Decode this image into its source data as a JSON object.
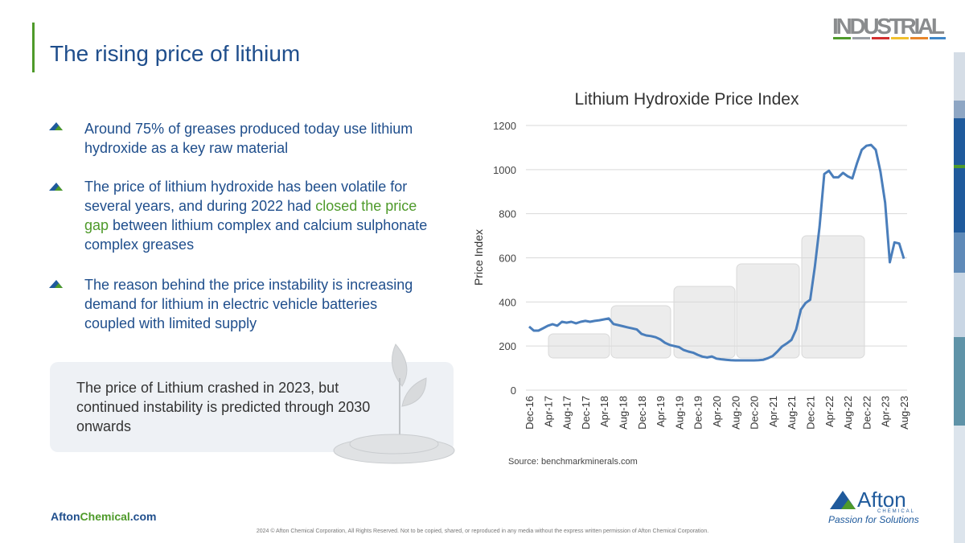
{
  "slide": {
    "title": "The rising price of lithium",
    "brand": "INDUSTRIAL",
    "bullets": [
      {
        "parts": [
          "Around 75% of greases produced today use lithium hydroxide as a key raw material"
        ]
      },
      {
        "parts": [
          "The price of lithium hydroxide has been volatile for several years, and during 2022 had ",
          "closed the price gap",
          " between lithium complex and calcium sulphonate complex greases"
        ]
      },
      {
        "parts": [
          "The reason behind the price instability is increasing demand for lithium in electric vehicle batteries coupled with limited supply"
        ]
      }
    ],
    "callout": "The price of Lithium crashed in 2023, but continued instability is predicted through 2030 onwards",
    "source": "Source: benchmarkminerals.com",
    "footer": {
      "site": [
        "Afton",
        "Chemical",
        ".com"
      ],
      "copyright": "2024 © Afton Chemical Corporation, All Rights Reserved.  Not to be copied, shared, or reproduced in any media without the express written permission of Afton Chemical Corporation."
    },
    "logo": {
      "name": "Afton",
      "sub": "CHEMICAL",
      "tagline": "Passion for Solutions"
    }
  },
  "chart_data": {
    "type": "line",
    "title": "Lithium Hydroxide Price Index",
    "y_label": "Price Index",
    "color": "#4a7ebb",
    "grid": true,
    "ylim": [
      0,
      1200
    ],
    "yticks": [
      0,
      200,
      400,
      600,
      800,
      1000,
      1200
    ],
    "categories": [
      "Dec-16",
      null,
      null,
      null,
      "Apr-17",
      null,
      null,
      null,
      "Aug-17",
      null,
      null,
      null,
      "Dec-17",
      null,
      null,
      null,
      "Apr-18",
      null,
      null,
      null,
      "Aug-18",
      null,
      null,
      null,
      "Dec-18",
      null,
      null,
      null,
      "Apr-19",
      null,
      null,
      null,
      "Aug-19",
      null,
      null,
      null,
      "Dec-19",
      null,
      null,
      null,
      "Apr-20",
      null,
      null,
      null,
      "Aug-20",
      null,
      null,
      null,
      "Dec-20",
      null,
      null,
      null,
      "Apr-21",
      null,
      null,
      null,
      "Aug-21",
      null,
      null,
      null,
      "Dec-21",
      null,
      null,
      null,
      "Apr-22",
      null,
      null,
      null,
      "Aug-22",
      null,
      null,
      null,
      "Dec-22",
      null,
      null,
      null,
      "Apr-23",
      null,
      null,
      null,
      "Aug-23"
    ],
    "values": [
      288,
      270,
      270,
      281,
      292,
      299,
      292,
      310,
      306,
      310,
      303,
      310,
      314,
      310,
      314,
      317,
      321,
      325,
      300,
      295,
      290,
      285,
      280,
      275,
      255,
      248,
      245,
      240,
      230,
      215,
      205,
      200,
      195,
      182,
      175,
      170,
      160,
      152,
      148,
      153,
      143,
      140,
      138,
      136,
      135,
      135,
      135,
      135,
      135,
      136,
      138,
      145,
      155,
      175,
      198,
      212,
      228,
      275,
      365,
      395,
      410,
      560,
      740,
      980,
      995,
      965,
      965,
      985,
      970,
      960,
      1030,
      1090,
      1108,
      1112,
      1090,
      990,
      850,
      580,
      670,
      665,
      596
    ]
  }
}
